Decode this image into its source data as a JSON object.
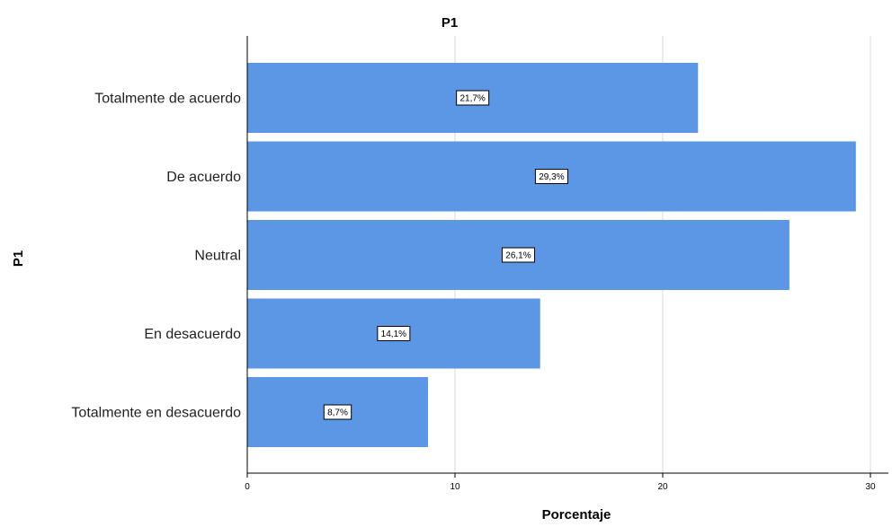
{
  "chart_data": {
    "type": "bar",
    "orientation": "horizontal",
    "title": "P1",
    "xlabel": "Porcentaje",
    "ylabel": "P1",
    "categories": [
      "Totalmente de acuerdo",
      "De acuerdo",
      "Neutral",
      "En desacuerdo",
      "Totalmente en desacuerdo"
    ],
    "values": [
      21.7,
      29.3,
      26.1,
      14.1,
      8.7
    ],
    "data_labels": [
      "21,7%",
      "29,3%",
      "26,1%",
      "14,1%",
      "8,7%"
    ],
    "xlim": [
      0,
      31
    ],
    "xticks": [
      0,
      10,
      20,
      30
    ],
    "xtick_labels": [
      "0",
      "10",
      "20",
      "30"
    ],
    "grid": "vertical",
    "legend": "none",
    "bar_color": "#5b97e5",
    "grid_color": "#d9d9d9"
  }
}
